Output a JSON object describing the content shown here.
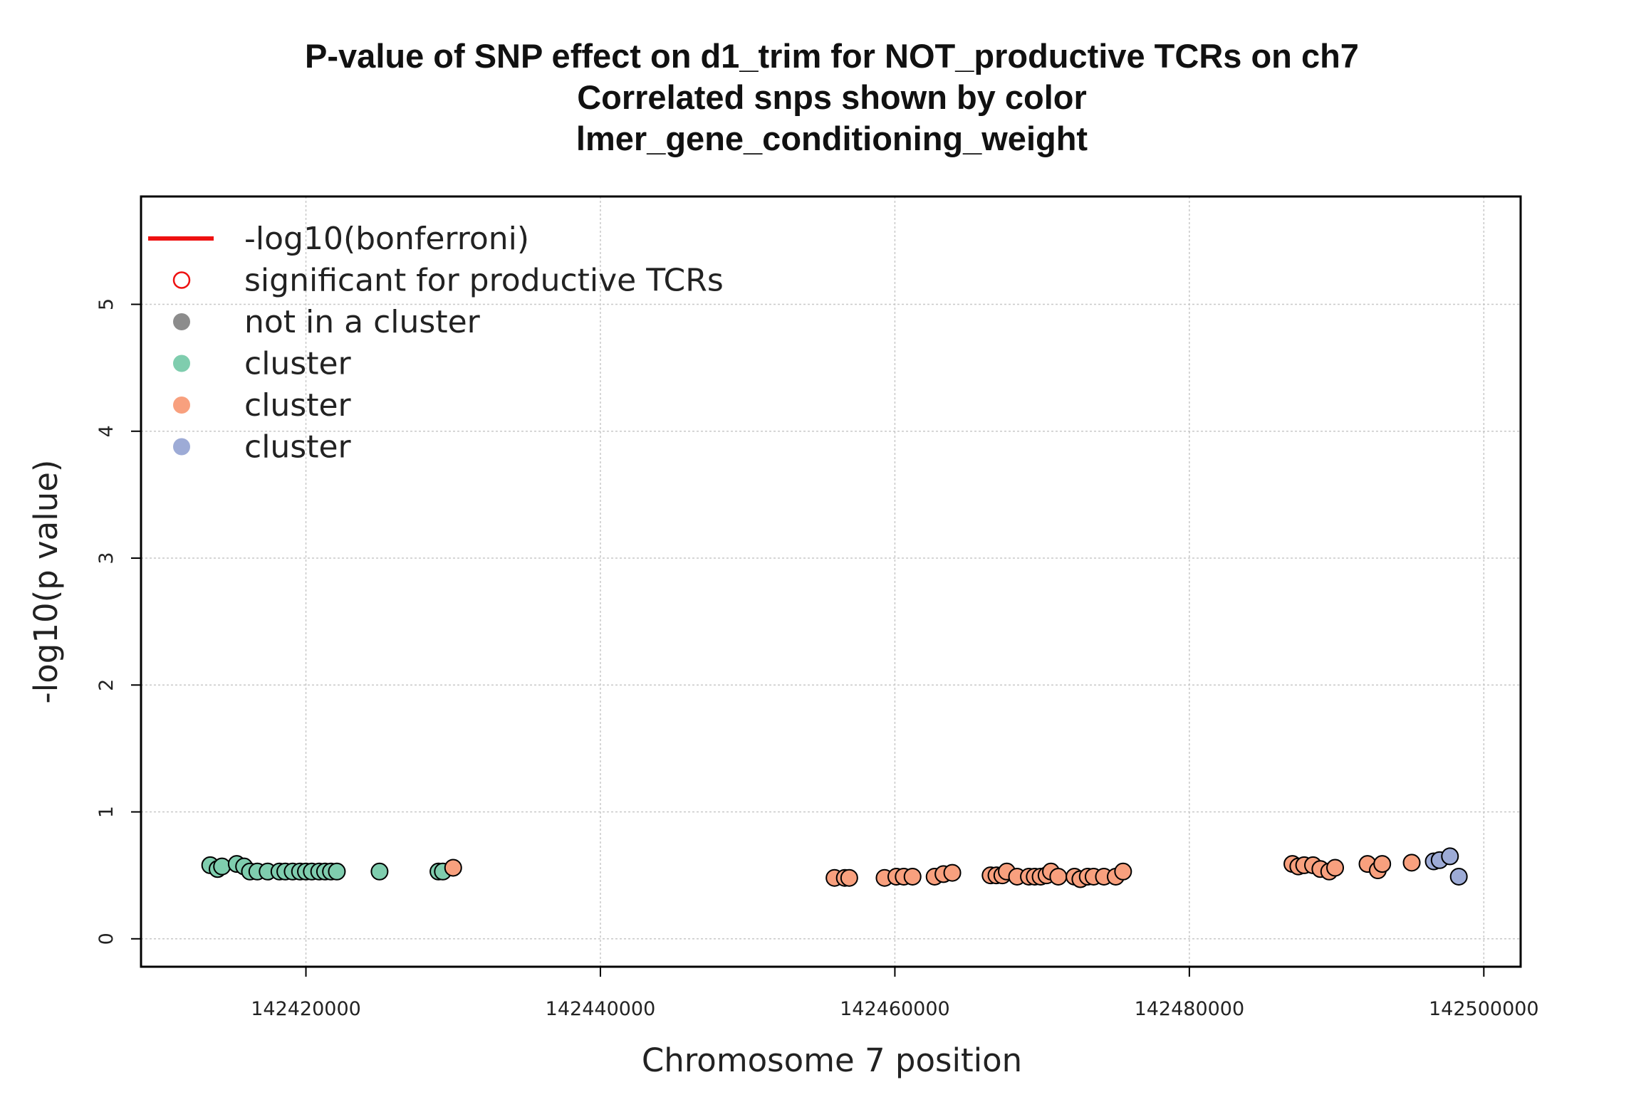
{
  "chart_data": {
    "type": "scatter",
    "title_lines": [
      "P-value of SNP effect on d1_trim for NOT_productive TCRs on ch7",
      "Correlated snps shown by color",
      "lmer_gene_conditioning_weight"
    ],
    "xlabel": "Chromosome 7 position",
    "ylabel": "-log10(p value)",
    "xlim": [
      142408800,
      142502500
    ],
    "ylim": [
      -0.22,
      5.85
    ],
    "x_ticks": [
      142420000,
      142440000,
      142460000,
      142480000,
      142500000
    ],
    "x_tick_labels": [
      "142420000",
      "142440000",
      "142460000",
      "142480000",
      "142500000"
    ],
    "y_ticks": [
      0,
      1,
      2,
      3,
      4,
      5
    ],
    "y_tick_labels": [
      "0",
      "1",
      "2",
      "3",
      "4",
      "5"
    ],
    "grid": true,
    "legend_position": "top-left",
    "legend": [
      {
        "label": "-log10(bonferroni)",
        "kind": "line",
        "color": "#ee1111"
      },
      {
        "label": "significant for productive TCRs",
        "kind": "open-circle",
        "color": "#ee1111"
      },
      {
        "label": "not in a cluster",
        "kind": "filled-circle",
        "color": "#8c8c8c"
      },
      {
        "label": "cluster",
        "kind": "filled-circle",
        "color": "#7fcdae"
      },
      {
        "label": "cluster",
        "kind": "filled-circle",
        "color": "#f8a07e"
      },
      {
        "label": "cluster",
        "kind": "filled-circle",
        "color": "#9dabd6"
      }
    ],
    "series": [
      {
        "name": "cluster",
        "color": "#7fcdae",
        "points": [
          [
            142413500,
            0.58
          ],
          [
            142414000,
            0.55
          ],
          [
            142414300,
            0.57
          ],
          [
            142415300,
            0.59
          ],
          [
            142415800,
            0.57
          ],
          [
            142416200,
            0.53
          ],
          [
            142416700,
            0.53
          ],
          [
            142417400,
            0.53
          ],
          [
            142418200,
            0.53
          ],
          [
            142418600,
            0.53
          ],
          [
            142419100,
            0.53
          ],
          [
            142419600,
            0.53
          ],
          [
            142420000,
            0.53
          ],
          [
            142420400,
            0.53
          ],
          [
            142420900,
            0.53
          ],
          [
            142421300,
            0.53
          ],
          [
            142421700,
            0.53
          ],
          [
            142422100,
            0.53
          ],
          [
            142425000,
            0.53
          ],
          [
            142429000,
            0.53
          ],
          [
            142429300,
            0.53
          ]
        ]
      },
      {
        "name": "cluster",
        "color": "#f8a07e",
        "points": [
          [
            142430000,
            0.56
          ],
          [
            142455900,
            0.48
          ],
          [
            142456600,
            0.48
          ],
          [
            142456900,
            0.48
          ],
          [
            142459300,
            0.48
          ],
          [
            142460100,
            0.49
          ],
          [
            142460600,
            0.49
          ],
          [
            142461200,
            0.49
          ],
          [
            142462700,
            0.49
          ],
          [
            142463300,
            0.51
          ],
          [
            142463900,
            0.52
          ],
          [
            142466500,
            0.5
          ],
          [
            142466900,
            0.5
          ],
          [
            142467300,
            0.5
          ],
          [
            142467600,
            0.53
          ],
          [
            142468300,
            0.49
          ],
          [
            142469100,
            0.49
          ],
          [
            142469500,
            0.49
          ],
          [
            142469900,
            0.49
          ],
          [
            142470300,
            0.5
          ],
          [
            142470600,
            0.53
          ],
          [
            142471100,
            0.49
          ],
          [
            142472200,
            0.49
          ],
          [
            142472600,
            0.47
          ],
          [
            142473100,
            0.49
          ],
          [
            142473500,
            0.49
          ],
          [
            142474200,
            0.49
          ],
          [
            142475000,
            0.49
          ],
          [
            142475500,
            0.53
          ],
          [
            142487000,
            0.59
          ],
          [
            142487400,
            0.57
          ],
          [
            142487800,
            0.58
          ],
          [
            142488400,
            0.58
          ],
          [
            142488900,
            0.55
          ],
          [
            142489500,
            0.53
          ],
          [
            142489900,
            0.56
          ],
          [
            142492100,
            0.59
          ],
          [
            142492800,
            0.54
          ],
          [
            142493100,
            0.59
          ],
          [
            142495100,
            0.6
          ]
        ]
      },
      {
        "name": "cluster",
        "color": "#9dabd6",
        "points": [
          [
            142496600,
            0.61
          ],
          [
            142497000,
            0.62
          ],
          [
            142497700,
            0.65
          ],
          [
            142498300,
            0.49
          ]
        ]
      }
    ]
  }
}
